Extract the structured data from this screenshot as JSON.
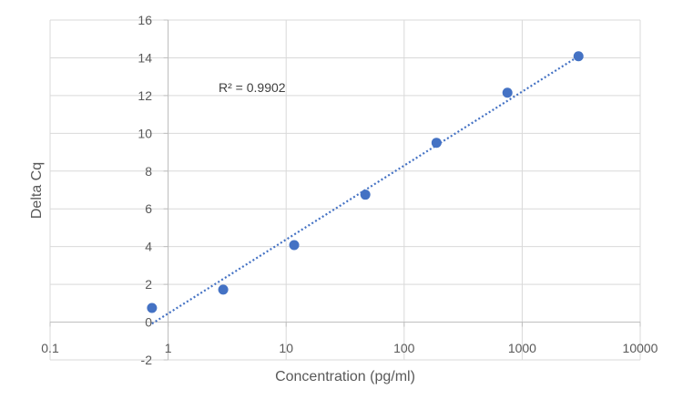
{
  "chart_data": {
    "type": "scatter",
    "title": "",
    "xlabel": "Concentration (pg/ml)",
    "ylabel": "Delta Cq",
    "x_scale": "log",
    "xlim": [
      0.1,
      10000
    ],
    "ylim": [
      -2,
      16
    ],
    "x_ticks": [
      0.1,
      1,
      10,
      100,
      1000,
      10000
    ],
    "x_tick_labels": [
      "0.1",
      "1",
      "10",
      "100",
      "1000",
      "10000"
    ],
    "y_ticks": [
      -2,
      0,
      2,
      4,
      6,
      8,
      10,
      12,
      14,
      16
    ],
    "y_tick_labels": [
      "-2",
      "0",
      "2",
      "4",
      "6",
      "8",
      "10",
      "12",
      "14",
      "16"
    ],
    "grid": true,
    "legend": "none",
    "marker_color": "#4472C4",
    "trendline_color": "#4472C4",
    "points": [
      {
        "x": 0.73,
        "y": 0.75
      },
      {
        "x": 2.93,
        "y": 1.72
      },
      {
        "x": 11.7,
        "y": 4.08
      },
      {
        "x": 46.9,
        "y": 6.75
      },
      {
        "x": 188,
        "y": 9.5
      },
      {
        "x": 750,
        "y": 12.15
      },
      {
        "x": 3000,
        "y": 14.08
      }
    ],
    "trendline": {
      "type": "logarithmic",
      "x_start": 0.73,
      "y_start": -0.08,
      "x_end": 3000,
      "y_end": 14.08,
      "style": "dotted"
    },
    "annotation": "R² = 0.9902"
  }
}
